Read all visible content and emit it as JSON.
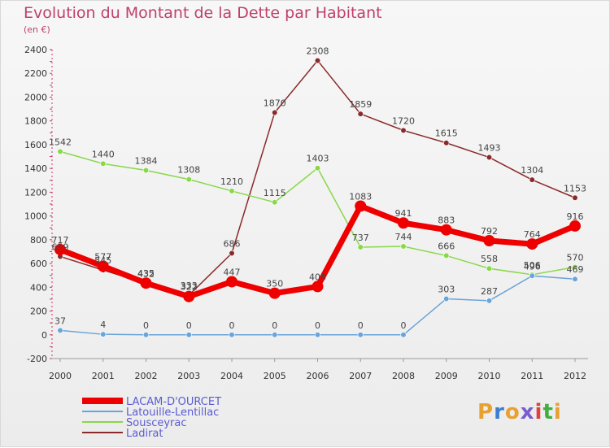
{
  "chart_data": {
    "type": "line",
    "title": "Evolution du Montant de la Dette par Habitant",
    "subtitle": "(en €)",
    "categories": [
      "2000",
      "2001",
      "2002",
      "2003",
      "2004",
      "2005",
      "2006",
      "2007",
      "2008",
      "2009",
      "2010",
      "2011",
      "2012"
    ],
    "ylim": [
      -200,
      2400
    ],
    "yticks": [
      -200,
      0,
      200,
      400,
      600,
      800,
      1000,
      1200,
      1400,
      1600,
      1800,
      2000,
      2200,
      2400
    ],
    "grid": false,
    "legend_position": "bottom-left",
    "series": [
      {
        "name": "LACAM-D'OURCET",
        "color": "#ee0000",
        "values": [
          717,
          577,
          435,
          322,
          447,
          350,
          406,
          1083,
          941,
          883,
          792,
          764,
          916
        ]
      },
      {
        "name": "Latouille-Lentillac",
        "color": "#6aa4d8",
        "values": [
          37,
          4,
          0,
          0,
          0,
          0,
          0,
          0,
          0,
          303,
          287,
          496,
          469
        ]
      },
      {
        "name": "Sousceyrac",
        "color": "#88d848",
        "values": [
          1542,
          1440,
          1384,
          1308,
          1210,
          1115,
          1403,
          737,
          744,
          666,
          558,
          506,
          570
        ]
      },
      {
        "name": "Ladirat",
        "color": "#8a2a2a",
        "values": [
          659,
          545,
          432,
          333,
          686,
          1870,
          2308,
          1859,
          1720,
          1615,
          1493,
          1304,
          1153
        ]
      }
    ]
  },
  "logo": {
    "text": "Proxiti",
    "colors": [
      "#e8a030",
      "#3a7fd0",
      "#e8a030",
      "#7a5cd0",
      "#e04040",
      "#40b040",
      "#e8a030"
    ]
  }
}
